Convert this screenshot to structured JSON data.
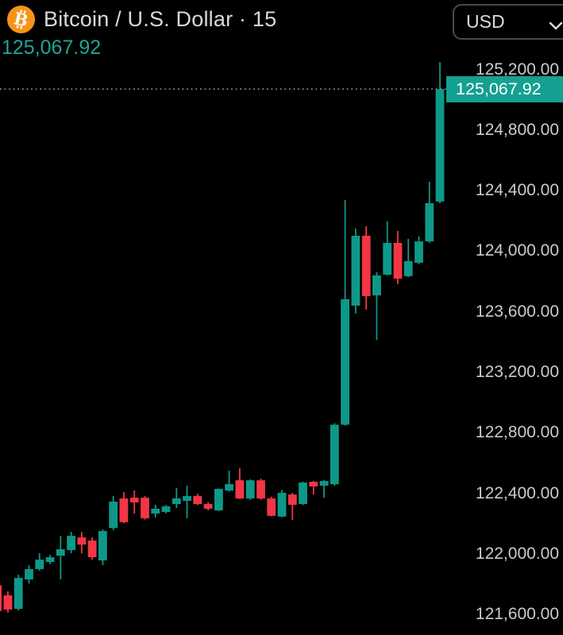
{
  "header": {
    "symbol_title": "Bitcoin / U.S. Dollar · 15",
    "price": "125,067.92",
    "bitcoin_icon": "bitcoin-icon",
    "currency_button": {
      "label": "USD",
      "icon": "chevron-down-icon"
    }
  },
  "price_axis": {
    "current_price_label": "125,067.92",
    "ticks": [
      {
        "value": 125200,
        "label": "125,200.00"
      },
      {
        "value": 124800,
        "label": "124,800.00"
      },
      {
        "value": 124400,
        "label": "124,400.00"
      },
      {
        "value": 124000,
        "label": "124,000.00"
      },
      {
        "value": 123600,
        "label": "123,600.00"
      },
      {
        "value": 123200,
        "label": "123,200.00"
      },
      {
        "value": 122800,
        "label": "122,800.00"
      },
      {
        "value": 122400,
        "label": "122,400.00"
      },
      {
        "value": 122000,
        "label": "122,000.00"
      },
      {
        "value": 121600,
        "label": "121,600.00"
      }
    ]
  },
  "chart_data": {
    "type": "candlestick",
    "title": "Bitcoin / U.S. Dollar",
    "symbol": "BTCUSD",
    "interval": "15",
    "currency": "USD",
    "last_price": 125067.92,
    "y_axis": {
      "ylim": [
        121462,
        125656
      ],
      "tick_step": 400,
      "grid": false,
      "side": "right"
    },
    "last_price_line": "dotted",
    "colors": {
      "up": "#0e9888",
      "down": "#f23645",
      "price_tag_bg": "#14a092",
      "price_line": "#8aa29d",
      "background": "#000000",
      "axis_text": "#c8cbd1",
      "accent_text": "#20a497",
      "bitcoin_orange": "#f7931a"
    },
    "candles_format": [
      "open",
      "high",
      "low",
      "close"
    ],
    "candles": [
      [
        121790,
        121800,
        121615,
        121620
      ],
      [
        121724,
        121750,
        121610,
        121630
      ],
      [
        121635,
        121860,
        121624,
        121839
      ],
      [
        121829,
        121923,
        121803,
        121897
      ],
      [
        121897,
        122002,
        121886,
        121960
      ],
      [
        121944,
        121991,
        121930,
        121975
      ],
      [
        121986,
        122117,
        121830,
        122028
      ],
      [
        122023,
        122143,
        122002,
        122117
      ],
      [
        122107,
        122143,
        122002,
        122060
      ],
      [
        122086,
        122107,
        121960,
        121976
      ],
      [
        121955,
        122159,
        121923,
        122149
      ],
      [
        122169,
        122380,
        122154,
        122343
      ],
      [
        122364,
        122406,
        122200,
        122207
      ],
      [
        122369,
        122417,
        122264,
        122338
      ],
      [
        122369,
        122380,
        122225,
        122233
      ],
      [
        122264,
        122322,
        122238,
        122296
      ],
      [
        122275,
        122320,
        122265,
        122312
      ],
      [
        122327,
        122432,
        122301,
        122364
      ],
      [
        122348,
        122448,
        122233,
        122380
      ],
      [
        122380,
        122395,
        122320,
        122327
      ],
      [
        122327,
        122340,
        122285,
        122296
      ],
      [
        122285,
        122430,
        122280,
        122427
      ],
      [
        122416,
        122547,
        122410,
        122458
      ],
      [
        122484,
        122563,
        122360,
        122364
      ],
      [
        122364,
        122490,
        122355,
        122484
      ],
      [
        122484,
        122495,
        122355,
        122364
      ],
      [
        122364,
        122375,
        122245,
        122249
      ],
      [
        122244,
        122420,
        122240,
        122401
      ],
      [
        122390,
        122400,
        122222,
        122322
      ],
      [
        122327,
        122475,
        122320,
        122469
      ],
      [
        122474,
        122480,
        122390,
        122443
      ],
      [
        122448,
        122485,
        122369,
        122479
      ],
      [
        122458,
        122860,
        122448,
        122851
      ],
      [
        122851,
        124335,
        122845,
        123680
      ],
      [
        123637,
        124146,
        123585,
        124099
      ],
      [
        124099,
        124162,
        123611,
        123700
      ],
      [
        123705,
        123858,
        123411,
        123837
      ],
      [
        123842,
        124194,
        123837,
        124052
      ],
      [
        124052,
        124131,
        123779,
        123816
      ],
      [
        123832,
        124078,
        123826,
        123931
      ],
      [
        123921,
        124094,
        123910,
        124062
      ],
      [
        124062,
        124456,
        124052,
        124314
      ],
      [
        124325,
        125246,
        124314,
        125067.92
      ]
    ]
  }
}
